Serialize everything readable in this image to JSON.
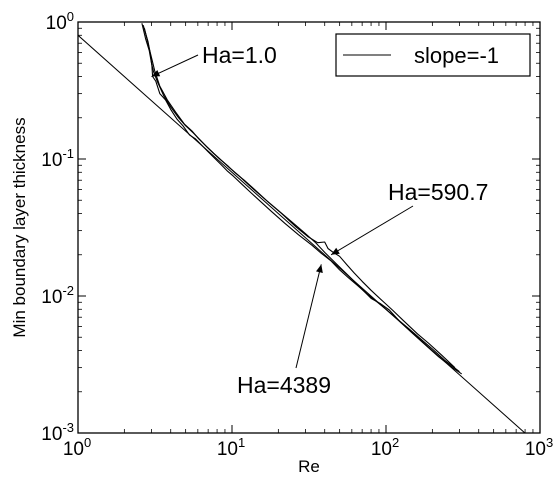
{
  "chart_data": {
    "type": "line",
    "xscale": "log",
    "yscale": "log",
    "xlabel": "Re",
    "ylabel": "Min boundary layer thickness",
    "xlim": [
      1,
      1000
    ],
    "ylim": [
      0.001,
      1
    ],
    "grid": false,
    "legend": {
      "position": "top-right",
      "entries": [
        "slope=-1"
      ]
    },
    "x_ticks": [
      {
        "value": 1,
        "base": "10",
        "exp": "0"
      },
      {
        "value": 10,
        "base": "10",
        "exp": "1"
      },
      {
        "value": 100,
        "base": "10",
        "exp": "2"
      },
      {
        "value": 1000,
        "base": "10",
        "exp": "3"
      }
    ],
    "y_ticks": [
      {
        "value": 0.001,
        "base": "10",
        "exp": "-3"
      },
      {
        "value": 0.01,
        "base": "10",
        "exp": "-2"
      },
      {
        "value": 0.1,
        "base": "10",
        "exp": "-1"
      },
      {
        "value": 1,
        "base": "10",
        "exp": "0"
      }
    ],
    "series": [
      {
        "name": "slope=-1",
        "x": [
          1,
          831
        ],
        "y": [
          0.8,
          0.00096
        ]
      },
      {
        "x": [
          2.65,
          2.85,
          2.95,
          3.02,
          3.05,
          3.2,
          3.4,
          3.7,
          4.0,
          4.4,
          4.8,
          5.3,
          5.8,
          6.4,
          7.0,
          7.8,
          8.5,
          9.3,
          10.2,
          11.5,
          13.0,
          15.0,
          18.0,
          22.0,
          27.0,
          33.0,
          38.0,
          44.0,
          50.0,
          57.0,
          65.0,
          75.0,
          85.0,
          100.0,
          120.0,
          140.0,
          170.0,
          200.0,
          240.0,
          300.0
        ],
        "y": [
          0.95,
          0.72,
          0.58,
          0.48,
          0.4,
          0.37,
          0.3,
          0.27,
          0.23,
          0.195,
          0.175,
          0.15,
          0.14,
          0.125,
          0.113,
          0.1,
          0.091,
          0.082,
          0.075,
          0.066,
          0.058,
          0.05,
          0.0415,
          0.034,
          0.028,
          0.0235,
          0.0205,
          0.018,
          0.0155,
          0.0136,
          0.012,
          0.0104,
          0.0093,
          0.008,
          0.0067,
          0.0058,
          0.0048,
          0.0041,
          0.0034,
          0.0028
        ]
      },
      {
        "x": [
          2.6,
          2.75,
          2.9,
          3.0,
          3.1,
          3.3,
          3.6,
          4.0,
          4.5,
          5.0,
          5.6,
          6.2,
          6.9,
          7.6,
          8.5,
          9.5,
          10.5,
          12.0,
          14.0,
          17.0,
          21.0,
          26.0,
          31.0,
          36.0,
          40.0,
          42.0,
          45.0,
          50.0,
          56.0,
          62.0,
          70.0,
          80.0,
          95.0,
          110.0,
          130.0,
          160.0,
          190.0,
          230.0,
          280.0
        ],
        "y": [
          0.98,
          0.75,
          0.62,
          0.5,
          0.43,
          0.36,
          0.29,
          0.24,
          0.2,
          0.175,
          0.155,
          0.138,
          0.122,
          0.11,
          0.098,
          0.088,
          0.079,
          0.07,
          0.06,
          0.049,
          0.04,
          0.032,
          0.0272,
          0.0245,
          0.0248,
          0.0222,
          0.021,
          0.0195,
          0.0168,
          0.0148,
          0.0128,
          0.011,
          0.0092,
          0.0079,
          0.0066,
          0.0053,
          0.0045,
          0.0037,
          0.003
        ]
      },
      {
        "x": [
          2.7,
          2.85,
          3.0,
          3.15,
          3.4,
          3.8,
          4.3,
          4.9,
          5.5,
          6.1,
          6.8,
          7.6,
          8.6,
          9.8,
          11.0,
          13.0,
          16.0,
          20.0,
          25.0,
          30.0,
          35.0,
          40.0,
          48.0,
          58.0,
          70.0,
          80.0,
          92.0,
          105.0,
          125.0,
          150.0,
          180.0,
          220.0,
          270.0,
          310.0
        ],
        "y": [
          0.9,
          0.7,
          0.55,
          0.44,
          0.34,
          0.27,
          0.22,
          0.18,
          0.16,
          0.14,
          0.124,
          0.11,
          0.097,
          0.085,
          0.076,
          0.064,
          0.052,
          0.042,
          0.034,
          0.0285,
          0.0244,
          0.0208,
          0.017,
          0.0138,
          0.0112,
          0.0096,
          0.0088,
          0.0079,
          0.0064,
          0.0053,
          0.0044,
          0.0036,
          0.003,
          0.0027
        ]
      }
    ],
    "annotations": [
      {
        "text": "Ha=1.0",
        "x": 3.0,
        "y": 0.4
      },
      {
        "text": "Ha=590.7",
        "x": 44,
        "y": 0.02
      },
      {
        "text": "Ha=4389",
        "x": 38,
        "y": 0.017
      }
    ]
  }
}
